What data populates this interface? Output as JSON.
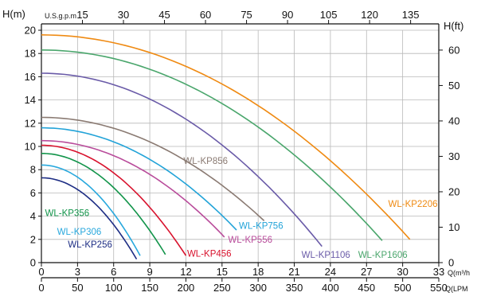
{
  "chart_data": {
    "type": "line",
    "grid": true,
    "axes": {
      "left": {
        "title": "H(m)",
        "min": 0,
        "max": 20,
        "ticks": [
          0,
          2,
          4,
          6,
          8,
          10,
          12,
          14,
          16,
          18,
          20
        ]
      },
      "right": {
        "title": "H(ft)",
        "min": 0,
        "max": 65.6,
        "ticks": [
          0,
          10,
          20,
          30,
          40,
          50,
          60
        ]
      },
      "bottom_m3h": {
        "title": "Q(m³/h",
        "min": 0,
        "max": 33,
        "ticks": [
          0,
          3,
          6,
          9,
          12,
          15,
          18,
          21,
          24,
          27,
          30,
          33
        ]
      },
      "bottom_lpm": {
        "title": "Q(LPM",
        "min": 0,
        "max": 550,
        "ticks": [
          0,
          50,
          100,
          150,
          200,
          250,
          300,
          350,
          400,
          450,
          500,
          550
        ]
      },
      "top_gpm": {
        "title": "U.S.g.p.m",
        "min": 0,
        "max": 145.3,
        "ticks": [
          15,
          30,
          45,
          60,
          75,
          90,
          105,
          120,
          135
        ]
      }
    },
    "series": [
      {
        "name": "WL-KP256",
        "color": "#1d2d84",
        "q_max": 7.9,
        "h0": 7.3,
        "h_end": 0.3,
        "label_xy": [
          2.2,
          1.3
        ]
      },
      {
        "name": "WL-KP306",
        "color": "#28a8dd",
        "q_max": 8.2,
        "h0": 8.4,
        "h_end": 0.6,
        "label_xy": [
          1.3,
          2.4
        ]
      },
      {
        "name": "WL-KP356",
        "color": "#12944a",
        "q_max": 10.3,
        "h0": 9.4,
        "h_end": 0.7,
        "label_xy": [
          0.3,
          4.0
        ]
      },
      {
        "name": "WL-KP456",
        "color": "#d8122d",
        "q_max": 12.0,
        "h0": 10.1,
        "h_end": 0.6,
        "label_xy": [
          12.1,
          0.5
        ]
      },
      {
        "name": "WL-KP556",
        "color": "#b94c9b",
        "q_max": 15.2,
        "h0": 10.5,
        "h_end": 2.2,
        "label_xy": [
          15.5,
          1.7
        ]
      },
      {
        "name": "WL-KP756",
        "color": "#22a3d8",
        "q_max": 16.2,
        "h0": 11.6,
        "h_end": 2.8,
        "label_xy": [
          16.4,
          2.9
        ]
      },
      {
        "name": "WL-KP856",
        "color": "#8a7a72",
        "q_max": 18.5,
        "h0": 12.5,
        "h_end": 3.6,
        "label_xy": [
          11.8,
          8.5
        ]
      },
      {
        "name": "WL-KP1106",
        "color": "#6a5ba8",
        "q_max": 23.3,
        "h0": 16.3,
        "h_end": 1.4,
        "label_xy": [
          21.6,
          0.4
        ]
      },
      {
        "name": "WL-KP1606",
        "color": "#4aa66c",
        "q_max": 28.3,
        "h0": 18.3,
        "h_end": 1.9,
        "label_xy": [
          26.3,
          0.4
        ]
      },
      {
        "name": "WL-KP2206",
        "color": "#ef8a12",
        "q_max": 30.6,
        "h0": 19.6,
        "h_end": 2.0,
        "label_xy": [
          28.8,
          4.8
        ]
      }
    ]
  }
}
